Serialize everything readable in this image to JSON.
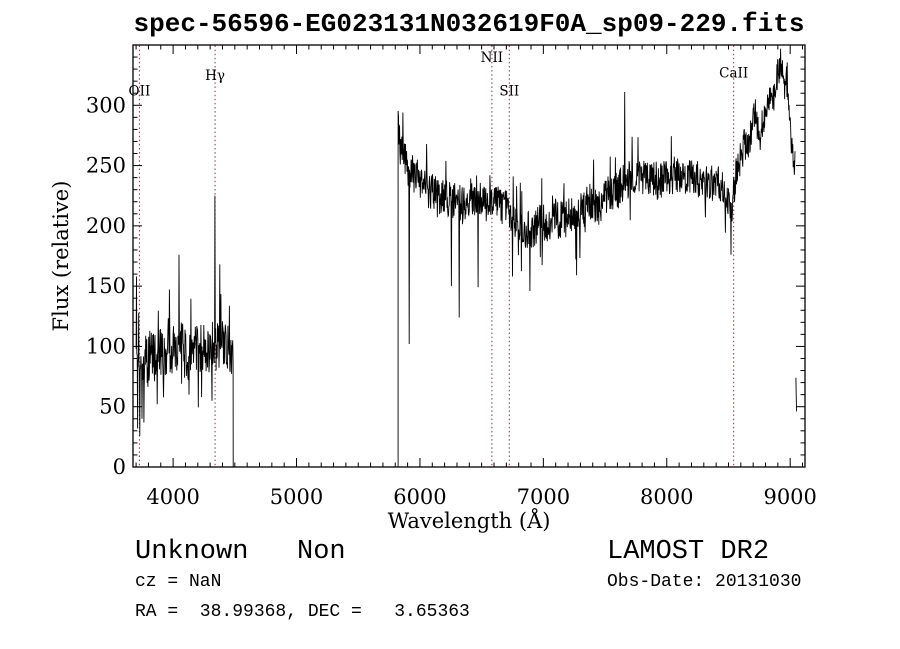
{
  "figure": {
    "title": "spec-56596-EG023131N032619F0A_sp09-229.fits"
  },
  "annotations": {
    "class_line": "Unknown   Non",
    "cz_line": "cz = NaN",
    "radec_line": "RA =  38.99368, DEC =   3.65363",
    "survey": "LAMOST DR2",
    "obsdate_line": "Obs-Date: 20131030"
  },
  "chart_data": {
    "type": "line",
    "title": "spec-56596-EG023131N032619F0A_sp09-229.fits",
    "xlabel": "Wavelength (Å)",
    "ylabel": "Flux (relative)",
    "xlim": [
      3675,
      9120
    ],
    "ylim": [
      0,
      350
    ],
    "xticks": [
      4000,
      5000,
      6000,
      7000,
      8000,
      9000
    ],
    "xtick_labels": [
      "4000",
      "5000",
      "6000",
      "7000",
      "8000",
      "9000"
    ],
    "x_minor_step": 100,
    "yticks": [
      0,
      50,
      100,
      150,
      200,
      250,
      300
    ],
    "ytick_labels": [
      "0",
      "50",
      "100",
      "150",
      "200",
      "250",
      "300"
    ],
    "y_minor_step": 10,
    "grid": false,
    "legend": "none",
    "line_color": "#000000",
    "marker_line_color": "#8b3a3a",
    "spectral_lines": [
      {
        "label": "OII",
        "wavelength": 3727,
        "label_flux": 308
      },
      {
        "label": "Hγ",
        "wavelength": 4340,
        "label_flux": 321
      },
      {
        "label": "NII",
        "wavelength": 6583,
        "label_flux": 336
      },
      {
        "label": "SII",
        "wavelength": 6724,
        "label_flux": 308
      },
      {
        "label": "CaII",
        "wavelength": 8542,
        "label_flux": 323
      }
    ],
    "series": [
      {
        "name": "spectrum",
        "segments": [
          {
            "range": [
              3700,
              4487
            ],
            "step": 3,
            "drop_start": false,
            "drop_end": true,
            "envelope": [
              [
                3700,
                98
              ],
              [
                3730,
                80
              ],
              [
                3760,
                88
              ],
              [
                3800,
                90
              ],
              [
                3850,
                92
              ],
              [
                3900,
                96
              ],
              [
                3950,
                98
              ],
              [
                4000,
                96
              ],
              [
                4048,
                104
              ],
              [
                4100,
                93
              ],
              [
                4150,
                91
              ],
              [
                4200,
                98
              ],
              [
                4250,
                101
              ],
              [
                4300,
                99
              ],
              [
                4340,
                103
              ],
              [
                4380,
                101
              ],
              [
                4430,
                99
              ],
              [
                4487,
                96
              ]
            ],
            "noise_amp": [
              [
                3700,
                40
              ],
              [
                3780,
                28
              ],
              [
                3900,
                26
              ],
              [
                4487,
                24
              ]
            ],
            "features": [
              [
                3703,
                158
              ],
              [
                3712,
                32
              ],
              [
                3721,
                128
              ],
              [
                3730,
                26
              ],
              [
                3739,
                92
              ],
              [
                3748,
                40
              ],
              [
                3870,
                52
              ],
              [
                4048,
                176
              ],
              [
                4130,
                60
              ],
              [
                4230,
                58
              ],
              [
                4340,
                225
              ],
              [
                4378,
                168
              ]
            ]
          },
          {
            "range": [
              5823,
              9040
            ],
            "step": 3,
            "drop_start": true,
            "drop_end": false,
            "envelope": [
              [
                5823,
                290
              ],
              [
                5840,
                260
              ],
              [
                5870,
                262
              ],
              [
                5900,
                248
              ],
              [
                5940,
                244
              ],
              [
                5980,
                240
              ],
              [
                6020,
                237
              ],
              [
                6060,
                231
              ],
              [
                6100,
                227
              ],
              [
                6150,
                223
              ],
              [
                6200,
                226
              ],
              [
                6250,
                220
              ],
              [
                6300,
                222
              ],
              [
                6350,
                216
              ],
              [
                6400,
                222
              ],
              [
                6450,
                219
              ],
              [
                6500,
                224
              ],
              [
                6550,
                221
              ],
              [
                6583,
                223
              ],
              [
                6620,
                219
              ],
              [
                6660,
                215
              ],
              [
                6700,
                215
              ],
              [
                6750,
                207
              ],
              [
                6800,
                199
              ],
              [
                6850,
                194
              ],
              [
                6900,
                196
              ],
              [
                6950,
                200
              ],
              [
                7000,
                204
              ],
              [
                7050,
                202
              ],
              [
                7100,
                207
              ],
              [
                7150,
                205
              ],
              [
                7200,
                209
              ],
              [
                7250,
                213
              ],
              [
                7300,
                212
              ],
              [
                7350,
                218
              ],
              [
                7400,
                220
              ],
              [
                7450,
                217
              ],
              [
                7500,
                223
              ],
              [
                7550,
                226
              ],
              [
                7600,
                230
              ],
              [
                7650,
                236
              ],
              [
                7700,
                239
              ],
              [
                7750,
                236
              ],
              [
                7800,
                241
              ],
              [
                7850,
                237
              ],
              [
                7900,
                240
              ],
              [
                7950,
                236
              ],
              [
                8000,
                240
              ],
              [
                8050,
                237
              ],
              [
                8100,
                242
              ],
              [
                8150,
                239
              ],
              [
                8200,
                243
              ],
              [
                8250,
                239
              ],
              [
                8300,
                236
              ],
              [
                8350,
                234
              ],
              [
                8400,
                237
              ],
              [
                8450,
                231
              ],
              [
                8500,
                222
              ],
              [
                8530,
                218
              ],
              [
                8560,
                243
              ],
              [
                8600,
                257
              ],
              [
                8630,
                268
              ],
              [
                8660,
                261
              ],
              [
                8690,
                283
              ],
              [
                8720,
                293
              ],
              [
                8750,
                272
              ],
              [
                8780,
                287
              ],
              [
                8810,
                300
              ],
              [
                8840,
                312
              ],
              [
                8870,
                306
              ],
              [
                8900,
                328
              ],
              [
                8925,
                333
              ],
              [
                8945,
                321
              ],
              [
                8965,
                328
              ],
              [
                8985,
                299
              ],
              [
                9005,
                272
              ],
              [
                9025,
                257
              ],
              [
                9040,
                251
              ]
            ],
            "noise_amp": [
              [
                5823,
                16
              ],
              [
                6100,
                20
              ],
              [
                6583,
                16
              ],
              [
                6800,
                19
              ],
              [
                7200,
                21
              ],
              [
                7700,
                19
              ],
              [
                8200,
                18
              ],
              [
                8530,
                17
              ],
              [
                8800,
                15
              ],
              [
                9040,
                13
              ]
            ],
            "features": [
              [
                5862,
                294
              ],
              [
                5912,
                102
              ],
              [
                6255,
                150
              ],
              [
                6318,
                124
              ],
              [
                6470,
                149
              ],
              [
                6750,
                158
              ],
              [
                6890,
                146
              ],
              [
                7270,
                159
              ],
              [
                7660,
                311
              ],
              [
                8520,
                176
              ]
            ]
          },
          {
            "range": [
              9046,
              9052
            ],
            "step": 3,
            "drop_start": false,
            "drop_end": false,
            "envelope": [
              [
                9046,
                74
              ],
              [
                9052,
                46
              ]
            ],
            "noise_amp": [
              [
                9046,
                0
              ]
            ],
            "features": []
          }
        ]
      }
    ]
  }
}
